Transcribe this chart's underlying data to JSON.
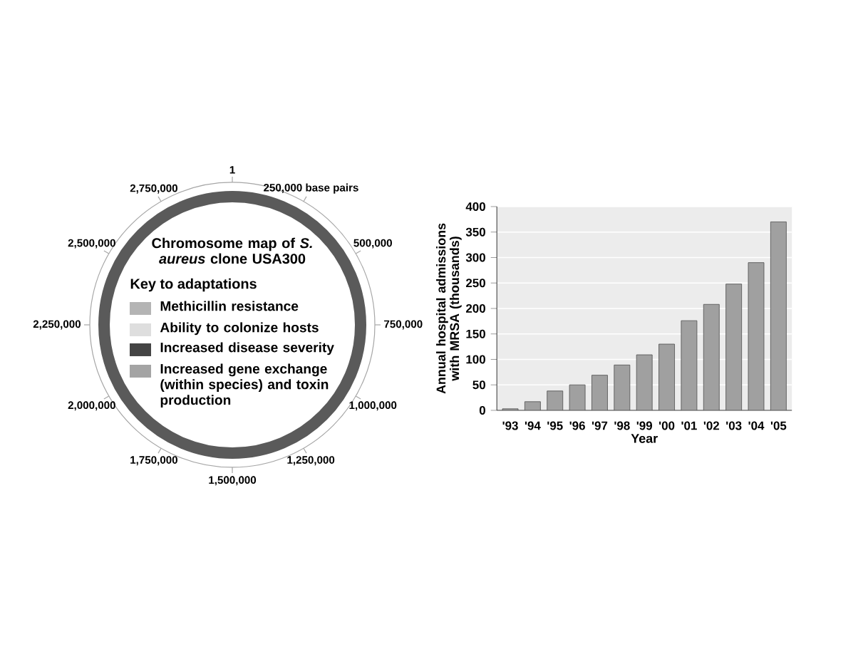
{
  "chart_data": [
    {
      "type": "other",
      "title": "Chromosome map of *S. aureus* clone USA300",
      "legend_title": "Key to adaptations",
      "categories": [
        "Methicillin resistance",
        "Ability to colonize hosts",
        "Increased disease severity",
        "Increased gene exchange (within species) and toxin production"
      ],
      "colors": [
        "#b4b4b4",
        "#dedede",
        "#444444",
        "#a4a4a4"
      ],
      "annotations": [
        "1",
        "250,000 base pairs",
        "500,000",
        "750,000",
        "1,000,000",
        "1,250,000",
        "1,500,000",
        "1,750,000",
        "2,000,000",
        "2,250,000",
        "2,500,000",
        "2,750,000"
      ]
    },
    {
      "type": "bar",
      "xlabel": "Year",
      "ylabel": "Annual hospital admissions with MRSA (thousands)",
      "categories": [
        "'93",
        "'94",
        "'95",
        "'96",
        "'97",
        "'98",
        "'99",
        "'00",
        "'01",
        "'02",
        "'03",
        "'04",
        "'05"
      ],
      "values": [
        3,
        17,
        38,
        50,
        69,
        89,
        109,
        130,
        176,
        208,
        248,
        290,
        370
      ],
      "color": "#a0a0a0",
      "ylim": [
        0,
        400
      ],
      "yticks": [
        0,
        50,
        100,
        150,
        200,
        250,
        300,
        350,
        400
      ],
      "grid": "y"
    }
  ]
}
